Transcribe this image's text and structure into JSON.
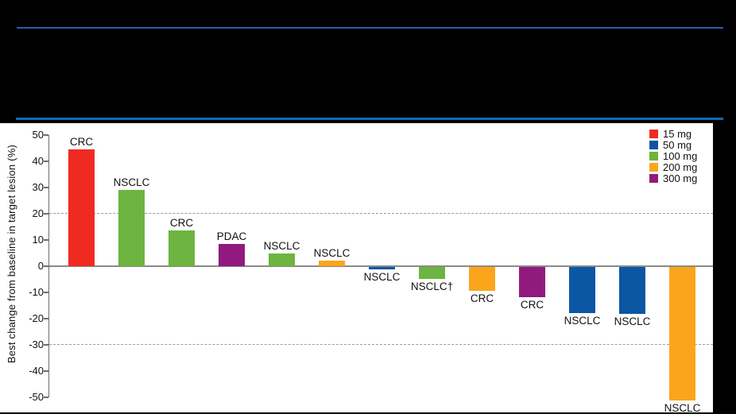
{
  "slide": {
    "background_color": "#000000",
    "header_rule_top_color": "#2B5CA9",
    "header_rule_bottom_color": "#1268B4"
  },
  "chart_data": {
    "type": "bar",
    "subtype": "waterfall",
    "title": "",
    "xlabel": "",
    "ylabel": "Best change from baseline in target lesion (%)",
    "ylim": [
      -50,
      50
    ],
    "yticks": [
      50,
      40,
      30,
      20,
      10,
      0,
      -10,
      -20,
      -30,
      -40,
      -50
    ],
    "reference_lines": [
      20,
      -30
    ],
    "grid": "off",
    "legend_position": "top-right",
    "legend": {
      "entries": [
        {
          "label": "15 mg",
          "color": "#EF2A21"
        },
        {
          "label": "50 mg",
          "color": "#0B57A4"
        },
        {
          "label": "100 mg",
          "color": "#6DB440"
        },
        {
          "label": "200 mg",
          "color": "#FAA51C"
        },
        {
          "label": "300 mg",
          "color": "#911A7E"
        }
      ]
    },
    "bars": [
      {
        "label": "CRC",
        "value": 44.5,
        "dose": "15 mg",
        "color": "#EF2A21"
      },
      {
        "label": "NSCLC",
        "value": 29,
        "dose": "100 mg",
        "color": "#6DB440"
      },
      {
        "label": "CRC",
        "value": 13.5,
        "dose": "100 mg",
        "color": "#6DB440"
      },
      {
        "label": "PDAC",
        "value": 8.5,
        "dose": "300 mg",
        "color": "#911A7E"
      },
      {
        "label": "NSCLC",
        "value": 5,
        "dose": "100 mg",
        "color": "#6DB440"
      },
      {
        "label": "NSCLC",
        "value": 2,
        "dose": "200 mg",
        "color": "#FAA51C"
      },
      {
        "label": "NSCLC",
        "value": -1,
        "dose": "50 mg",
        "color": "#0B57A4"
      },
      {
        "label": "NSCLC†",
        "value": -4.5,
        "dose": "100 mg",
        "color": "#6DB440"
      },
      {
        "label": "CRC",
        "value": -9,
        "dose": "200 mg",
        "color": "#FAA51C"
      },
      {
        "label": "CRC",
        "value": -11.5,
        "dose": "300 mg",
        "color": "#911A7E"
      },
      {
        "label": "NSCLC",
        "value": -17.5,
        "dose": "50 mg",
        "color": "#0B57A4"
      },
      {
        "label": "NSCLC",
        "value": -18,
        "dose": "50 mg",
        "color": "#0B57A4"
      },
      {
        "label": "NSCLC",
        "value": -51,
        "dose": "200 mg",
        "color": "#FAA51C"
      }
    ]
  }
}
